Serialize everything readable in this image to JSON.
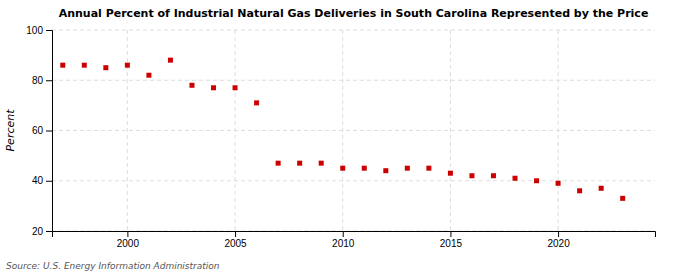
{
  "chart_data": {
    "type": "scatter",
    "title": "Annual Percent of Industrial Natural Gas Deliveries in South Carolina Represented by the Price",
    "ylabel": "Percent",
    "source": "Source: U.S. Energy Information Administration",
    "x": [
      1997,
      1998,
      1999,
      2000,
      2001,
      2002,
      2003,
      2004,
      2005,
      2006,
      2007,
      2008,
      2009,
      2010,
      2011,
      2012,
      2013,
      2014,
      2015,
      2016,
      2017,
      2018,
      2019,
      2020,
      2021,
      2022,
      2023
    ],
    "values": [
      86,
      86,
      85,
      86,
      82,
      88,
      78,
      77,
      77,
      71,
      47,
      47,
      47,
      45,
      45,
      44,
      45,
      45,
      43,
      42,
      42,
      41,
      40,
      39,
      36,
      37,
      33
    ],
    "color": "#cc0000",
    "marker": "square",
    "xlim": [
      1996.5,
      2024.5
    ],
    "ylim": [
      20,
      100
    ],
    "xticks": [
      2000,
      2005,
      2010,
      2015,
      2020
    ],
    "yticks": [
      20,
      40,
      60,
      80,
      100
    ],
    "grid": true
  }
}
